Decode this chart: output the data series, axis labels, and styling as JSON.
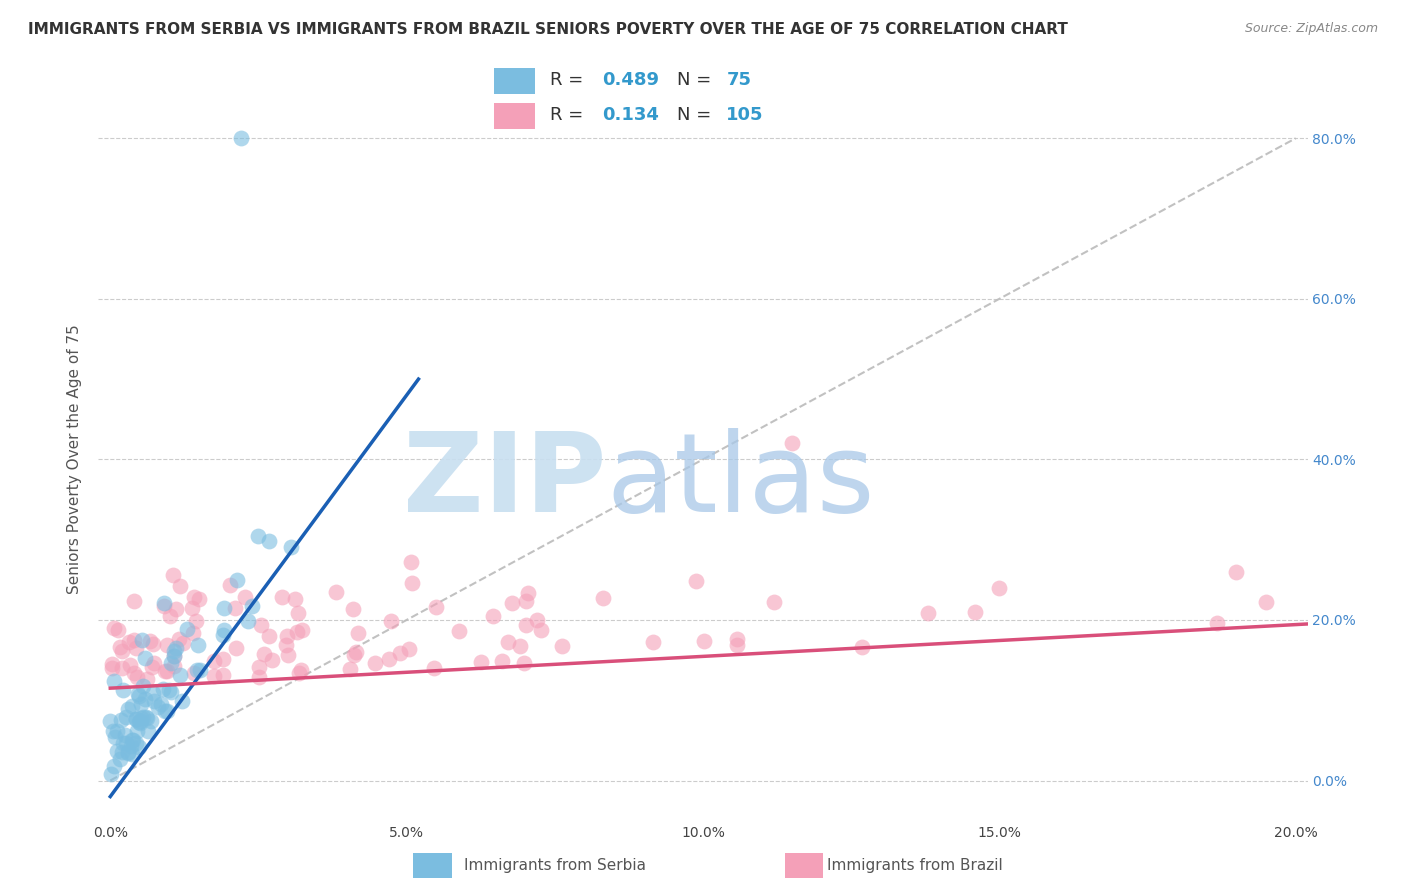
{
  "title": "IMMIGRANTS FROM SERBIA VS IMMIGRANTS FROM BRAZIL SENIORS POVERTY OVER THE AGE OF 75 CORRELATION CHART",
  "source": "Source: ZipAtlas.com",
  "ylabel": "Seniors Poverty Over the Age of 75",
  "serbia_label": "Immigrants from Serbia",
  "brazil_label": "Immigrants from Brazil",
  "serbia_R": 0.489,
  "serbia_N": 75,
  "brazil_R": 0.134,
  "brazil_N": 105,
  "serbia_color": "#7bbde0",
  "brazil_color": "#f4a0b8",
  "serbia_line_color": "#1a5fb4",
  "brazil_line_color": "#d94f7a",
  "ref_line_color": "#bbbbbb",
  "xlim": [
    -0.002,
    0.202
  ],
  "ylim": [
    -0.05,
    0.85
  ],
  "xticks": [
    0.0,
    0.05,
    0.1,
    0.15,
    0.2
  ],
  "yticks": [
    0.0,
    0.2,
    0.4,
    0.6,
    0.8
  ],
  "grid_color": "#cccccc",
  "background_color": "#ffffff",
  "watermark_zip": "ZIP",
  "watermark_atlas": "atlas",
  "watermark_color_zip": "#c8dff0",
  "watermark_color_atlas": "#a8c8e8",
  "title_fontsize": 11,
  "axis_label_fontsize": 11,
  "tick_fontsize": 10,
  "legend_fontsize": 13,
  "serbia_line_x": [
    0.0,
    0.052
  ],
  "serbia_line_y": [
    -0.02,
    0.5
  ],
  "brazil_line_x": [
    0.0,
    0.202
  ],
  "brazil_line_y": [
    0.115,
    0.195
  ]
}
